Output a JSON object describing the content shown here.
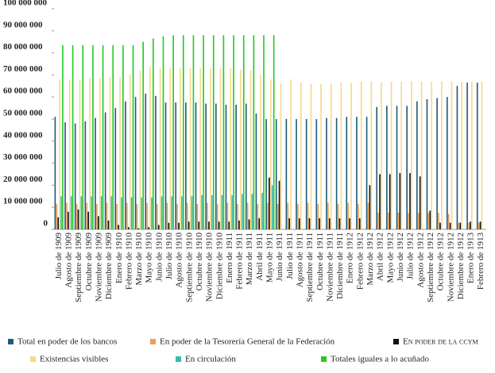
{
  "chart_data": {
    "type": "bar",
    "categories": [
      "Julio de 1909",
      "Agosto de 1909",
      "Septiembre de 1909",
      "Octubre de 1909",
      "Noviembre de 1909",
      "Diciembre de 1909",
      "Enero de 1910",
      "Febrero de 1910",
      "Marzo de 1910",
      "Mayo de 1910",
      "Junio de 1910",
      "Julio de 1910",
      "Agosto de 1910",
      "Septiembre de 1910",
      "Octubre de 1910",
      "Noviembre de 1910",
      "Diciembre de 1910",
      "Enero de 1911",
      "Febrero de 1911",
      "Marzo de 1911",
      "Abril de 1911",
      "Mayo de 1911",
      "Junio de 1911",
      "Julio de 1911",
      "Agosto de 1911",
      "Septiembre de 1911",
      "Octubre de 1911",
      "Noviembre de 1911",
      "Diciembre de 1911",
      "Enero de 1912",
      "Febrero de 1912",
      "Marzo de 1912",
      "Abril de 1912",
      "Mayo de 1912",
      "Junio de 1912",
      "Julio de 1912",
      "Agosto de 1912",
      "Septiembre de 1912",
      "Octubre de 1912",
      "Noviembre de 1912",
      "Diciembre de 1912",
      "Enero de 1913",
      "Febrero de 1913"
    ],
    "series": [
      {
        "name": "Total en poder de los bancos",
        "color": "#1f5c7a",
        "values": [
          51000000,
          48500000,
          48000000,
          49000000,
          50500000,
          53000000,
          55000000,
          58000000,
          60000000,
          61500000,
          60500000,
          57500000,
          57500000,
          57500000,
          57500000,
          57000000,
          57000000,
          56500000,
          56500000,
          57000000,
          52500000,
          50000000,
          50000000,
          50000000,
          50000000,
          50000000,
          50000000,
          50500000,
          50500000,
          51000000,
          51000000,
          51000000,
          55500000,
          56000000,
          56000000,
          56000000,
          58000000,
          59000000,
          59500000,
          60000000,
          65000000,
          66500000,
          66500000
        ]
      },
      {
        "name": "En poder de la Tesorería General de la Federación",
        "color": "#e8a052",
        "values": [
          11500000,
          12000000,
          11500000,
          12000000,
          11500000,
          12000000,
          11500000,
          12000000,
          11500000,
          12000000,
          11500000,
          12000000,
          11500000,
          12000000,
          11500000,
          12000000,
          11500000,
          12000000,
          11500000,
          12000000,
          11500000,
          12000000,
          11500000,
          12000000,
          11500000,
          12000000,
          11500000,
          12000000,
          11500000,
          12000000,
          11500000,
          12000000,
          7500000,
          7500000,
          7500000,
          7500000,
          7500000,
          7500000,
          7500000,
          7000000,
          3000000,
          3000000,
          3000000
        ]
      },
      {
        "name": "En poder de la ccym",
        "color": "#111111",
        "values": [
          5500000,
          8000000,
          9000000,
          8000000,
          6000000,
          4000000,
          2000000,
          1000000,
          500000,
          1000000,
          2000000,
          3000000,
          3000000,
          3500000,
          3500000,
          3500000,
          3500000,
          3500000,
          4000000,
          4500000,
          5000000,
          23500000,
          22000000,
          5000000,
          5000000,
          5000000,
          5000000,
          5000000,
          5000000,
          5000000,
          5000000,
          20000000,
          25000000,
          25000000,
          25500000,
          25500000,
          24000000,
          8500000,
          3000000,
          3000000,
          3000000,
          3500000,
          3500000
        ]
      },
      {
        "name": "Existencias visibles",
        "color": "#f6d98a",
        "values": [
          68000000,
          68000000,
          68000000,
          68500000,
          68500000,
          69000000,
          69000000,
          70000000,
          72000000,
          73500000,
          73000000,
          73000000,
          73000000,
          73000000,
          73000000,
          73000000,
          73000000,
          73000000,
          72500000,
          72000000,
          70000000,
          68000000,
          66000000,
          68000000,
          66500000,
          66000000,
          66000000,
          66000000,
          66500000,
          66500000,
          67000000,
          67000000,
          66500000,
          67000000,
          67000000,
          67000000,
          67000000,
          67000000,
          67000000,
          67000000,
          67000000,
          67000000,
          67000000
        ]
      },
      {
        "name": "En circulación",
        "color": "#3bb8b0",
        "values": [
          15000000,
          15000000,
          15000000,
          15000000,
          15000000,
          15000000,
          14500000,
          14500000,
          14500000,
          14500000,
          15000000,
          15000000,
          15000000,
          15000000,
          15500000,
          15500000,
          15500000,
          15500000,
          16000000,
          16000000,
          16500000,
          20000000,
          null,
          null,
          null,
          null,
          null,
          null,
          null,
          null,
          null,
          null,
          null,
          null,
          null,
          null,
          null,
          null,
          null,
          null,
          null,
          null,
          null
        ]
      },
      {
        "name": "Totales iguales a lo acuñado",
        "color": "#22cc22",
        "values": [
          83500000,
          83500000,
          83500000,
          83500000,
          83500000,
          83500000,
          83500000,
          83500000,
          85000000,
          86500000,
          87500000,
          88000000,
          88000000,
          88000000,
          88000000,
          88000000,
          88000000,
          88000000,
          88000000,
          88000000,
          88000000,
          88000000,
          null,
          null,
          null,
          null,
          null,
          null,
          null,
          null,
          null,
          null,
          null,
          null,
          null,
          null,
          null,
          null,
          null,
          null,
          null,
          null,
          null
        ]
      }
    ],
    "ylim": [
      0,
      100000000
    ],
    "yticks": [
      0,
      {
        "value": 10000000,
        "label": "10 000 000"
      },
      {
        "value": 20000000,
        "label": "20 000 000"
      },
      {
        "value": 30000000,
        "label": "30 000 000"
      },
      {
        "value": 40000000,
        "label": "40 000 000"
      },
      {
        "value": 50000000,
        "label": "50 000 000"
      },
      {
        "value": 60000000,
        "label": "60 000 000"
      },
      {
        "value": 70000000,
        "label": "70 000 000"
      },
      {
        "value": 80000000,
        "label": "80 000 000"
      },
      {
        "value": 90000000,
        "label": "90 000 000"
      },
      {
        "value": 100000000,
        "label": "100 000 000"
      }
    ]
  }
}
